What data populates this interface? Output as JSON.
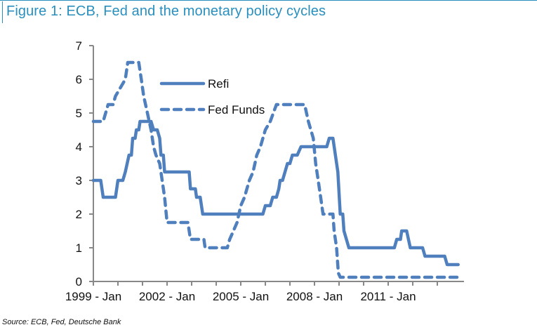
{
  "header": {
    "title": "Figure 1: ECB, Fed and the monetary policy cycles"
  },
  "footer": {
    "source": "Source: ECB, Fed, Deutsche Bank"
  },
  "colors": {
    "title": "#2a8fbd",
    "series": "#4f7fbd",
    "axis": "#888888"
  },
  "chart_data": {
    "type": "line",
    "title": "Figure 1: ECB, Fed and the monetary policy cycles",
    "xlabel": "",
    "ylabel": "",
    "ylim": [
      0,
      7
    ],
    "yticks": [
      "0",
      "1",
      "2",
      "3",
      "4",
      "5",
      "6",
      "7"
    ],
    "xlim_years": [
      1999.0,
      2014.0
    ],
    "xtick_labels": [
      "1999 - Jan",
      "2002 - Jan",
      "2005 - Jan",
      "2008 - Jan",
      "2011 - Jan"
    ],
    "xtick_label_years": [
      1999,
      2002,
      2005,
      2008,
      2011
    ],
    "minor_tick_years": [
      1999,
      2000,
      2001,
      2002,
      2003,
      2004,
      2005,
      2006,
      2007,
      2008,
      2009,
      2010,
      2011,
      2012,
      2013
    ],
    "grid": false,
    "legend": {
      "position": "top-center",
      "entries": [
        "Refi",
        "Fed Funds"
      ]
    },
    "series": [
      {
        "name": "Refi",
        "style": "solid",
        "points": [
          [
            1999.0,
            3.0
          ],
          [
            1999.3,
            3.0
          ],
          [
            1999.4,
            2.5
          ],
          [
            1999.9,
            2.5
          ],
          [
            2000.0,
            3.0
          ],
          [
            2000.2,
            3.0
          ],
          [
            2000.3,
            3.25
          ],
          [
            2000.45,
            3.75
          ],
          [
            2000.55,
            3.75
          ],
          [
            2000.6,
            4.25
          ],
          [
            2000.7,
            4.25
          ],
          [
            2000.75,
            4.5
          ],
          [
            2000.85,
            4.5
          ],
          [
            2000.9,
            4.75
          ],
          [
            2001.35,
            4.75
          ],
          [
            2001.45,
            4.5
          ],
          [
            2001.6,
            4.5
          ],
          [
            2001.7,
            4.25
          ],
          [
            2001.75,
            3.75
          ],
          [
            2001.85,
            3.75
          ],
          [
            2001.9,
            3.25
          ],
          [
            2002.9,
            3.25
          ],
          [
            2002.95,
            2.75
          ],
          [
            2003.15,
            2.75
          ],
          [
            2003.2,
            2.5
          ],
          [
            2003.35,
            2.5
          ],
          [
            2003.45,
            2.0
          ],
          [
            2005.9,
            2.0
          ],
          [
            2006.0,
            2.25
          ],
          [
            2006.2,
            2.25
          ],
          [
            2006.3,
            2.5
          ],
          [
            2006.45,
            2.5
          ],
          [
            2006.55,
            2.75
          ],
          [
            2006.6,
            3.0
          ],
          [
            2006.7,
            3.0
          ],
          [
            2006.8,
            3.25
          ],
          [
            2006.9,
            3.5
          ],
          [
            2007.0,
            3.5
          ],
          [
            2007.1,
            3.75
          ],
          [
            2007.3,
            3.75
          ],
          [
            2007.45,
            4.0
          ],
          [
            2008.5,
            4.0
          ],
          [
            2008.6,
            4.25
          ],
          [
            2008.75,
            4.25
          ],
          [
            2008.95,
            3.25
          ],
          [
            2009.05,
            2.0
          ],
          [
            2009.15,
            2.0
          ],
          [
            2009.2,
            1.5
          ],
          [
            2009.4,
            1.0
          ],
          [
            2011.25,
            1.0
          ],
          [
            2011.35,
            1.25
          ],
          [
            2011.5,
            1.25
          ],
          [
            2011.55,
            1.5
          ],
          [
            2011.75,
            1.5
          ],
          [
            2011.9,
            1.0
          ],
          [
            2012.4,
            1.0
          ],
          [
            2012.5,
            0.75
          ],
          [
            2013.3,
            0.75
          ],
          [
            2013.4,
            0.5
          ],
          [
            2013.85,
            0.5
          ]
        ]
      },
      {
        "name": "Fed Funds",
        "style": "dashed",
        "points": [
          [
            1999.0,
            4.75
          ],
          [
            1999.4,
            4.75
          ],
          [
            1999.5,
            5.0
          ],
          [
            1999.6,
            5.25
          ],
          [
            1999.8,
            5.25
          ],
          [
            1999.9,
            5.5
          ],
          [
            2000.1,
            5.75
          ],
          [
            2000.3,
            6.0
          ],
          [
            2000.4,
            6.5
          ],
          [
            2000.85,
            6.5
          ],
          [
            2000.95,
            6.0
          ],
          [
            2001.05,
            5.5
          ],
          [
            2001.2,
            5.0
          ],
          [
            2001.35,
            4.5
          ],
          [
            2001.45,
            4.0
          ],
          [
            2001.55,
            3.75
          ],
          [
            2001.7,
            3.5
          ],
          [
            2001.8,
            3.0
          ],
          [
            2001.9,
            2.5
          ],
          [
            2002.0,
            1.75
          ],
          [
            2002.1,
            1.75
          ],
          [
            2002.85,
            1.75
          ],
          [
            2002.95,
            1.25
          ],
          [
            2003.5,
            1.25
          ],
          [
            2003.55,
            1.0
          ],
          [
            2004.45,
            1.0
          ],
          [
            2004.55,
            1.25
          ],
          [
            2004.7,
            1.5
          ],
          [
            2004.85,
            1.75
          ],
          [
            2005.0,
            2.25
          ],
          [
            2005.15,
            2.5
          ],
          [
            2005.35,
            3.0
          ],
          [
            2005.5,
            3.25
          ],
          [
            2005.65,
            3.75
          ],
          [
            2005.8,
            4.0
          ],
          [
            2006.0,
            4.5
          ],
          [
            2006.2,
            4.75
          ],
          [
            2006.45,
            5.25
          ],
          [
            2007.6,
            5.25
          ],
          [
            2007.75,
            4.75
          ],
          [
            2007.95,
            4.25
          ],
          [
            2008.05,
            3.5
          ],
          [
            2008.15,
            3.0
          ],
          [
            2008.25,
            2.5
          ],
          [
            2008.35,
            2.0
          ],
          [
            2008.75,
            2.0
          ],
          [
            2008.8,
            1.5
          ],
          [
            2008.9,
            1.0
          ],
          [
            2008.97,
            0.25
          ],
          [
            2009.05,
            0.125
          ],
          [
            2013.8,
            0.125
          ]
        ]
      }
    ]
  }
}
